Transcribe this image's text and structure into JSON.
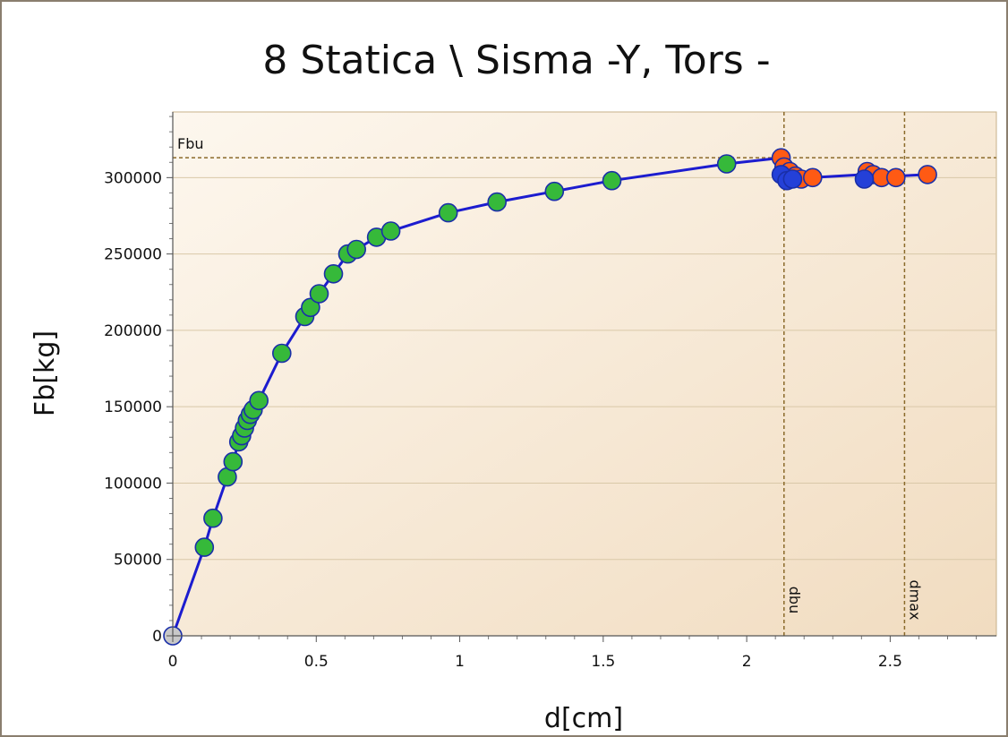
{
  "chart_data": {
    "type": "scatter",
    "title": "8 Statica \\ Sisma -Y, Tors -",
    "xlabel": "d[cm]",
    "ylabel": "Fb[kg]",
    "xlim": [
      0,
      2.87
    ],
    "ylim": [
      0,
      343000
    ],
    "x_ticks": [
      0,
      0.5,
      1,
      1.5,
      2,
      2.5
    ],
    "x_tick_labels": [
      "0",
      "0.5",
      "1",
      "1.5",
      "2",
      "2.5"
    ],
    "y_ticks": [
      0,
      50000,
      100000,
      150000,
      200000,
      250000,
      300000
    ],
    "y_tick_labels": [
      "0",
      "50000",
      "100000",
      "150000",
      "200000",
      "250000",
      "300000"
    ],
    "grid": "horizontal",
    "reference_lines": {
      "Fbu": {
        "axis": "y",
        "value": 313000,
        "label": "Fbu"
      },
      "dbu": {
        "axis": "x",
        "value": 2.13,
        "label": "dbu"
      },
      "dmax": {
        "axis": "x",
        "value": 2.55,
        "label": "dmax"
      }
    },
    "curve": {
      "color": "#1c1ccf",
      "x": [
        0,
        0.11,
        0.14,
        0.19,
        0.21,
        0.23,
        0.25,
        0.27,
        0.3,
        0.38,
        0.46,
        0.48,
        0.51,
        0.56,
        0.61,
        0.64,
        0.71,
        0.76,
        0.96,
        1.13,
        1.33,
        1.53,
        1.93,
        2.12,
        2.14,
        2.16,
        2.19,
        2.23,
        2.41,
        2.47,
        2.52,
        2.63
      ],
      "y": [
        0,
        58000,
        77000,
        104000,
        114000,
        127000,
        136000,
        145000,
        154000,
        185000,
        209000,
        215000,
        224000,
        237000,
        250000,
        253000,
        261000,
        265000,
        277000,
        284000,
        291000,
        298000,
        309000,
        313000,
        302000,
        299000,
        300000,
        300000,
        302000,
        301000,
        301000,
        302000
      ]
    },
    "series": [
      {
        "color": "#36b93a",
        "x": [
          0.11,
          0.14,
          0.19,
          0.21,
          0.23,
          0.24,
          0.25,
          0.26,
          0.27,
          0.28,
          0.3,
          0.38,
          0.46,
          0.48,
          0.51,
          0.56,
          0.61,
          0.64,
          0.71,
          0.76,
          0.96,
          1.13,
          1.33,
          1.53,
          1.93
        ],
        "y": [
          58000,
          77000,
          104000,
          114000,
          127000,
          131000,
          136000,
          141000,
          145000,
          148000,
          154000,
          185000,
          209000,
          215000,
          224000,
          237000,
          250000,
          253000,
          261000,
          265000,
          277000,
          284000,
          291000,
          298000,
          309000
        ]
      },
      {
        "color": "#ff5a14",
        "x": [
          2.12,
          2.13,
          2.15,
          2.17,
          2.19,
          2.23,
          2.42,
          2.44,
          2.47,
          2.52,
          2.63
        ],
        "y": [
          313000,
          307000,
          304000,
          301000,
          299000,
          300000,
          304000,
          302000,
          300000,
          300000,
          302000
        ]
      },
      {
        "color": "#2440d8",
        "x": [
          2.12,
          2.14,
          2.16,
          2.41
        ],
        "y": [
          302000,
          298000,
          299000,
          299000
        ]
      },
      {
        "color": "#c8c8c8",
        "x": [
          0
        ],
        "y": [
          0
        ]
      }
    ]
  }
}
